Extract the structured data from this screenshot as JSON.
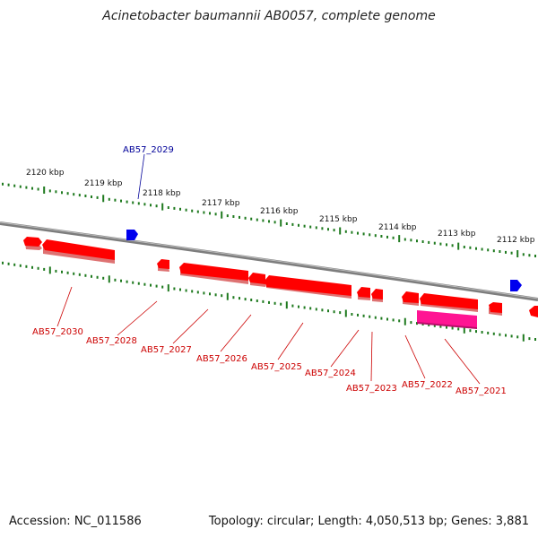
{
  "title": "Acinetobacter baumannii AB0057, complete genome",
  "accession_text": "Accession: NC_011586",
  "summary_text": "Topology: circular; Length: 4,050,513 bp; Genes: 3,881",
  "colors": {
    "forward_gene": "#ff0000",
    "reverse_gene": "#0000ee",
    "highlight_gene": "#ff1493",
    "backbone": "#8a8a8a",
    "ticks": "#1f7a1f",
    "forward_label": "#cc0000",
    "reverse_label": "#000099"
  },
  "kbp_labels": [
    "2120 kbp",
    "2119 kbp",
    "2118 kbp",
    "2117 kbp",
    "2116 kbp",
    "2115 kbp",
    "2114 kbp",
    "2113 kbp",
    "2112 kbp"
  ],
  "reverse_genes": [
    {
      "label": "AB57_2029"
    }
  ],
  "forward_gene_labels": [
    "AB57_2030",
    "AB57_2028",
    "AB57_2027",
    "AB57_2026",
    "AB57_2025",
    "AB57_2024",
    "AB57_2023",
    "AB57_2022",
    "AB57_2021"
  ]
}
